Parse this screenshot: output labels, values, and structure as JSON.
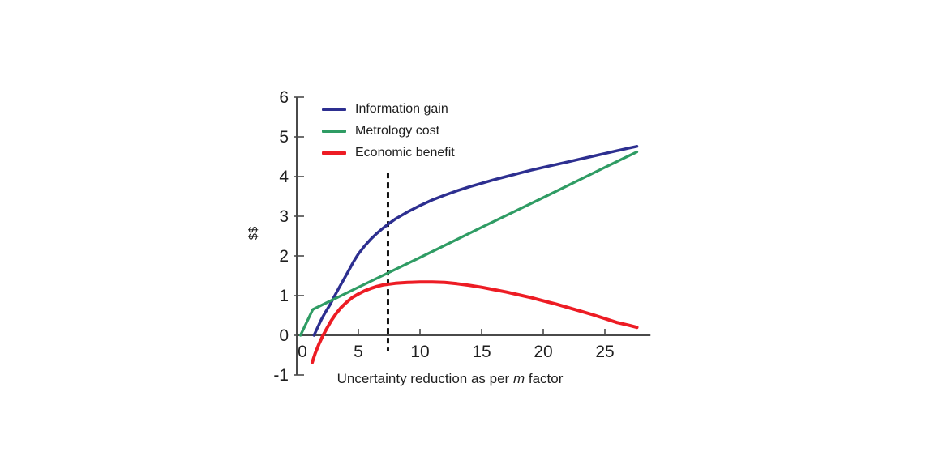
{
  "chart_data": {
    "type": "line",
    "title": "",
    "ylabel": "$$",
    "xlabel_parts": [
      "Uncertainty reduction as per ",
      "m",
      " factor"
    ],
    "xlim": [
      0,
      28.7
    ],
    "ylim": [
      -1,
      6
    ],
    "x_ticks": [
      0,
      5,
      10,
      15,
      20,
      25
    ],
    "y_ticks": [
      -1,
      0,
      1,
      2,
      3,
      4,
      5,
      6
    ],
    "grid": false,
    "legend_position": "top-left-inside",
    "axis_color": "#4a4a4a",
    "text_color": "#1f1f1f",
    "series": [
      {
        "name": "Information gain",
        "color": "#2d2f90",
        "stroke_width": 3.5,
        "points": [
          [
            1.4,
            0
          ],
          [
            1.7,
            0.2
          ],
          [
            2.0,
            0.4
          ],
          [
            2.3,
            0.57
          ],
          [
            2.7,
            0.77
          ],
          [
            3.0,
            0.95
          ],
          [
            3.4,
            1.18
          ],
          [
            3.8,
            1.4
          ],
          [
            4.2,
            1.62
          ],
          [
            4.6,
            1.85
          ],
          [
            5.0,
            2.05
          ],
          [
            5.5,
            2.25
          ],
          [
            6.0,
            2.42
          ],
          [
            6.5,
            2.57
          ],
          [
            7.0,
            2.7
          ],
          [
            7.5,
            2.82
          ],
          [
            8.0,
            2.93
          ],
          [
            9,
            3.11
          ],
          [
            10,
            3.27
          ],
          [
            11,
            3.41
          ],
          [
            12,
            3.53
          ],
          [
            13,
            3.64
          ],
          [
            14,
            3.74
          ],
          [
            15,
            3.83
          ],
          [
            16,
            3.92
          ],
          [
            17,
            4.0
          ],
          [
            18,
            4.08
          ],
          [
            19,
            4.16
          ],
          [
            20,
            4.23
          ],
          [
            21,
            4.3
          ],
          [
            22,
            4.37
          ],
          [
            23,
            4.44
          ],
          [
            24,
            4.51
          ],
          [
            25,
            4.58
          ],
          [
            26,
            4.65
          ],
          [
            27,
            4.72
          ],
          [
            27.6,
            4.76
          ]
        ]
      },
      {
        "name": "Metrology cost",
        "color": "#2f9c64",
        "stroke_width": 3.3,
        "points": [
          [
            0.3,
            0
          ],
          [
            1.3,
            0.65
          ],
          [
            5,
            1.21
          ],
          [
            10,
            1.96
          ],
          [
            15,
            2.72
          ],
          [
            20,
            3.47
          ],
          [
            25,
            4.23
          ],
          [
            27.6,
            4.62
          ]
        ]
      },
      {
        "name": "Economic benefit",
        "color": "#ed1c24",
        "stroke_width": 4,
        "points": [
          [
            1.25,
            -0.69
          ],
          [
            1.5,
            -0.45
          ],
          [
            1.8,
            -0.22
          ],
          [
            2.1,
            -0.02
          ],
          [
            2.4,
            0.15
          ],
          [
            2.8,
            0.37
          ],
          [
            3.2,
            0.55
          ],
          [
            3.6,
            0.7
          ],
          [
            4,
            0.82
          ],
          [
            4.5,
            0.95
          ],
          [
            5,
            1.04
          ],
          [
            5.5,
            1.12
          ],
          [
            6,
            1.18
          ],
          [
            6.5,
            1.23
          ],
          [
            7,
            1.27
          ],
          [
            7.5,
            1.29
          ],
          [
            8,
            1.31
          ],
          [
            9,
            1.33
          ],
          [
            10,
            1.34
          ],
          [
            11,
            1.34
          ],
          [
            12,
            1.33
          ],
          [
            13,
            1.3
          ],
          [
            14,
            1.26
          ],
          [
            15,
            1.21
          ],
          [
            16,
            1.15
          ],
          [
            17,
            1.09
          ],
          [
            18,
            1.02
          ],
          [
            19,
            0.95
          ],
          [
            20,
            0.87
          ],
          [
            21,
            0.79
          ],
          [
            22,
            0.7
          ],
          [
            23,
            0.61
          ],
          [
            24,
            0.52
          ],
          [
            25,
            0.42
          ],
          [
            26,
            0.32
          ],
          [
            27,
            0.25
          ],
          [
            27.6,
            0.2
          ]
        ]
      }
    ],
    "annotation_dashed_line": {
      "x": 7.4,
      "y_from": -0.39,
      "y_to": 4.1,
      "color": "#111111"
    }
  }
}
